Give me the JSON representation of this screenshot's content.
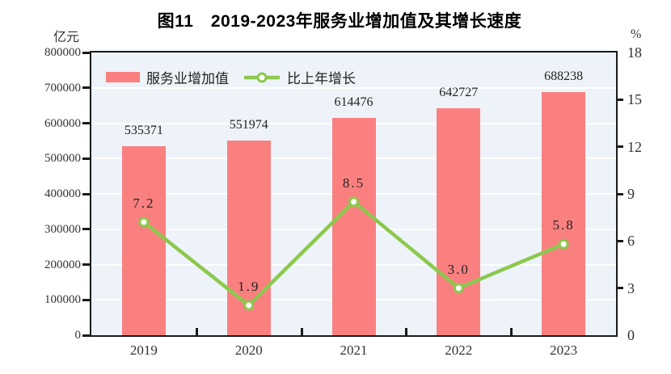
{
  "title": "图11　2019-2023年服务业增加值及其增长速度",
  "left_axis": {
    "unit_label": "亿元",
    "min": 0,
    "max": 800000,
    "step": 100000,
    "tick_labels": [
      "800000",
      "700000",
      "600000",
      "500000",
      "400000",
      "300000",
      "200000",
      "100000",
      "0"
    ]
  },
  "right_axis": {
    "unit_label": "%",
    "min": 0,
    "max": 18,
    "step": 3,
    "tick_labels": [
      "18",
      "15",
      "12",
      "9",
      "6",
      "3",
      "0"
    ]
  },
  "chart_data": {
    "type": "bar+line",
    "title": "图11　2019-2023年服务业增加值及其增长速度",
    "categories": [
      "2019",
      "2020",
      "2021",
      "2022",
      "2023"
    ],
    "series": [
      {
        "name": "服务业增加值",
        "type": "bar",
        "axis": "left",
        "unit": "亿元",
        "color": "#fa8080",
        "values": [
          535371,
          551974,
          614476,
          642727,
          688238
        ],
        "value_labels": [
          "535371",
          "551974",
          "614476",
          "642727",
          "688238"
        ]
      },
      {
        "name": "比上年增长",
        "type": "line",
        "axis": "right",
        "unit": "%",
        "color": "#8cc84e",
        "marker": "circle-white-fill",
        "values": [
          7.2,
          1.9,
          8.5,
          3.0,
          5.8
        ],
        "value_labels": [
          "7.2",
          "1.9",
          "8.5",
          "3.0",
          "5.8"
        ]
      }
    ],
    "left_ylim": [
      0,
      800000
    ],
    "right_ylim": [
      0,
      18
    ],
    "grid": "horizontal-white-on-light-blue",
    "legend_position": "top-left-inside"
  },
  "colors": {
    "bar": "#fa8080",
    "line": "#8cc84e",
    "plot_background": "#edf3f8",
    "gridline": "#ffffff",
    "axis": "#1a1a1a"
  }
}
